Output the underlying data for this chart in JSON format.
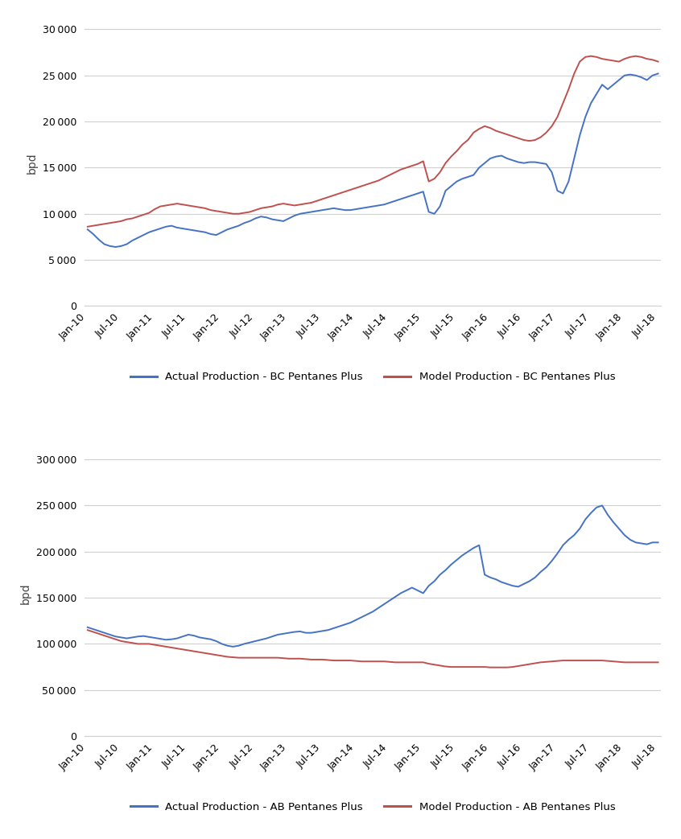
{
  "bg_color": "#ffffff",
  "grid_color": "#d0d0d0",
  "blue_color": "#4472C4",
  "red_color": "#C0504D",
  "chart1": {
    "ylabel": "bpd",
    "yticks": [
      0,
      5000,
      10000,
      15000,
      20000,
      25000,
      30000
    ],
    "ylim": [
      0,
      31000
    ],
    "legend": [
      "Actual Production - BC Pentanes Plus",
      "Model Production - BC Pentanes Plus"
    ],
    "actual_bc": [
      8300,
      7800,
      7200,
      6700,
      6500,
      6400,
      6500,
      6700,
      7100,
      7400,
      7700,
      8000,
      8200,
      8400,
      8600,
      8700,
      8500,
      8400,
      8300,
      8200,
      8100,
      8000,
      7800,
      7700,
      8000,
      8300,
      8500,
      8700,
      9000,
      9200,
      9500,
      9700,
      9600,
      9400,
      9300,
      9200,
      9500,
      9800,
      10000,
      10100,
      10200,
      10300,
      10400,
      10500,
      10600,
      10500,
      10400,
      10400,
      10500,
      10600,
      10700,
      10800,
      10900,
      11000,
      11200,
      11400,
      11600,
      11800,
      12000,
      12200,
      12400,
      10200,
      10000,
      10800,
      12500,
      13000,
      13500,
      13800,
      14000,
      14200,
      15000,
      15500,
      16000,
      16200,
      16300,
      16000,
      15800,
      15600,
      15500,
      15600,
      15600,
      15500,
      15400,
      14500,
      12500,
      12200,
      13500,
      16000,
      18500,
      20500,
      22000,
      23000,
      24000,
      23500,
      24000,
      24500,
      25000,
      25100,
      25000,
      24800,
      24500,
      25000,
      25200
    ],
    "model_bc": [
      8600,
      8700,
      8800,
      8900,
      9000,
      9100,
      9200,
      9400,
      9500,
      9700,
      9900,
      10100,
      10500,
      10800,
      10900,
      11000,
      11100,
      11000,
      10900,
      10800,
      10700,
      10600,
      10400,
      10300,
      10200,
      10100,
      10000,
      10000,
      10100,
      10200,
      10400,
      10600,
      10700,
      10800,
      11000,
      11100,
      11000,
      10900,
      11000,
      11100,
      11200,
      11400,
      11600,
      11800,
      12000,
      12200,
      12400,
      12600,
      12800,
      13000,
      13200,
      13400,
      13600,
      13900,
      14200,
      14500,
      14800,
      15000,
      15200,
      15400,
      15700,
      13500,
      13800,
      14500,
      15500,
      16200,
      16800,
      17500,
      18000,
      18800,
      19200,
      19500,
      19300,
      19000,
      18800,
      18600,
      18400,
      18200,
      18000,
      17900,
      18000,
      18300,
      18800,
      19500,
      20500,
      22000,
      23500,
      25200,
      26500,
      27000,
      27100,
      27000,
      26800,
      26700,
      26600,
      26500,
      26800,
      27000,
      27100,
      27000,
      26800,
      26700,
      26500
    ]
  },
  "chart2": {
    "ylabel": "bpd",
    "yticks": [
      0,
      50000,
      100000,
      150000,
      200000,
      250000,
      300000
    ],
    "ylim": [
      0,
      310000
    ],
    "legend": [
      "Actual Production - AB Pentanes Plus",
      "Model Production - AB Pentanes Plus"
    ],
    "actual_ab": [
      118000,
      116000,
      114000,
      112000,
      110000,
      108000,
      107000,
      106000,
      107000,
      108000,
      108500,
      107500,
      106500,
      105500,
      104500,
      105000,
      106000,
      108000,
      110000,
      109000,
      107000,
      106000,
      105000,
      103000,
      100000,
      98000,
      97000,
      98000,
      100000,
      101500,
      103000,
      104500,
      106000,
      108000,
      110000,
      111000,
      112000,
      113000,
      113500,
      112000,
      112000,
      113000,
      114000,
      115000,
      117000,
      119000,
      121000,
      123000,
      126000,
      129000,
      132000,
      135000,
      139000,
      143000,
      147000,
      151000,
      155000,
      158000,
      161000,
      158000,
      155000,
      163000,
      168000,
      175000,
      180000,
      186000,
      191000,
      196000,
      200000,
      204000,
      207000,
      175000,
      172000,
      170000,
      167000,
      165000,
      163000,
      162000,
      165000,
      168000,
      172000,
      178000,
      183000,
      190000,
      198000,
      207000,
      213000,
      218000,
      225000,
      235000,
      242000,
      248000,
      250000,
      240000,
      232000,
      225000,
      218000,
      213000,
      210000,
      209000,
      208000,
      210000,
      210000
    ],
    "model_ab": [
      115000,
      113000,
      111000,
      109000,
      107000,
      105000,
      103000,
      102000,
      101000,
      100000,
      100000,
      100000,
      99000,
      98000,
      97000,
      96000,
      95000,
      94000,
      93000,
      92000,
      91000,
      90000,
      89000,
      88000,
      87000,
      86000,
      85500,
      85000,
      85000,
      85000,
      85000,
      85000,
      85000,
      85000,
      85000,
      84500,
      84000,
      84000,
      84000,
      83500,
      83000,
      83000,
      83000,
      82500,
      82000,
      82000,
      82000,
      82000,
      81500,
      81000,
      81000,
      81000,
      81000,
      81000,
      80500,
      80000,
      80000,
      80000,
      80000,
      80000,
      80000,
      78500,
      77500,
      76500,
      75500,
      75000,
      75000,
      75000,
      75000,
      75000,
      75000,
      75000,
      74500,
      74500,
      74500,
      74500,
      75000,
      76000,
      77000,
      78000,
      79000,
      80000,
      80500,
      81000,
      81500,
      82000,
      82000,
      82000,
      82000,
      82000,
      82000,
      82000,
      82000,
      81500,
      81000,
      80500,
      80000,
      80000,
      80000,
      80000,
      80000,
      80000,
      80000
    ]
  },
  "x_labels": [
    "Jan-10",
    "Jul-10",
    "Jan-11",
    "Jul-11",
    "Jan-12",
    "Jul-12",
    "Jan-13",
    "Jul-13",
    "Jan-14",
    "Jul-14",
    "Jan-15",
    "Jul-15",
    "Jan-16",
    "Jul-16",
    "Jan-17",
    "Jul-17",
    "Jan-18",
    "Jul-18"
  ],
  "x_tick_positions": [
    0,
    6,
    12,
    18,
    24,
    30,
    36,
    42,
    48,
    54,
    60,
    66,
    72,
    78,
    84,
    90,
    96,
    102
  ]
}
